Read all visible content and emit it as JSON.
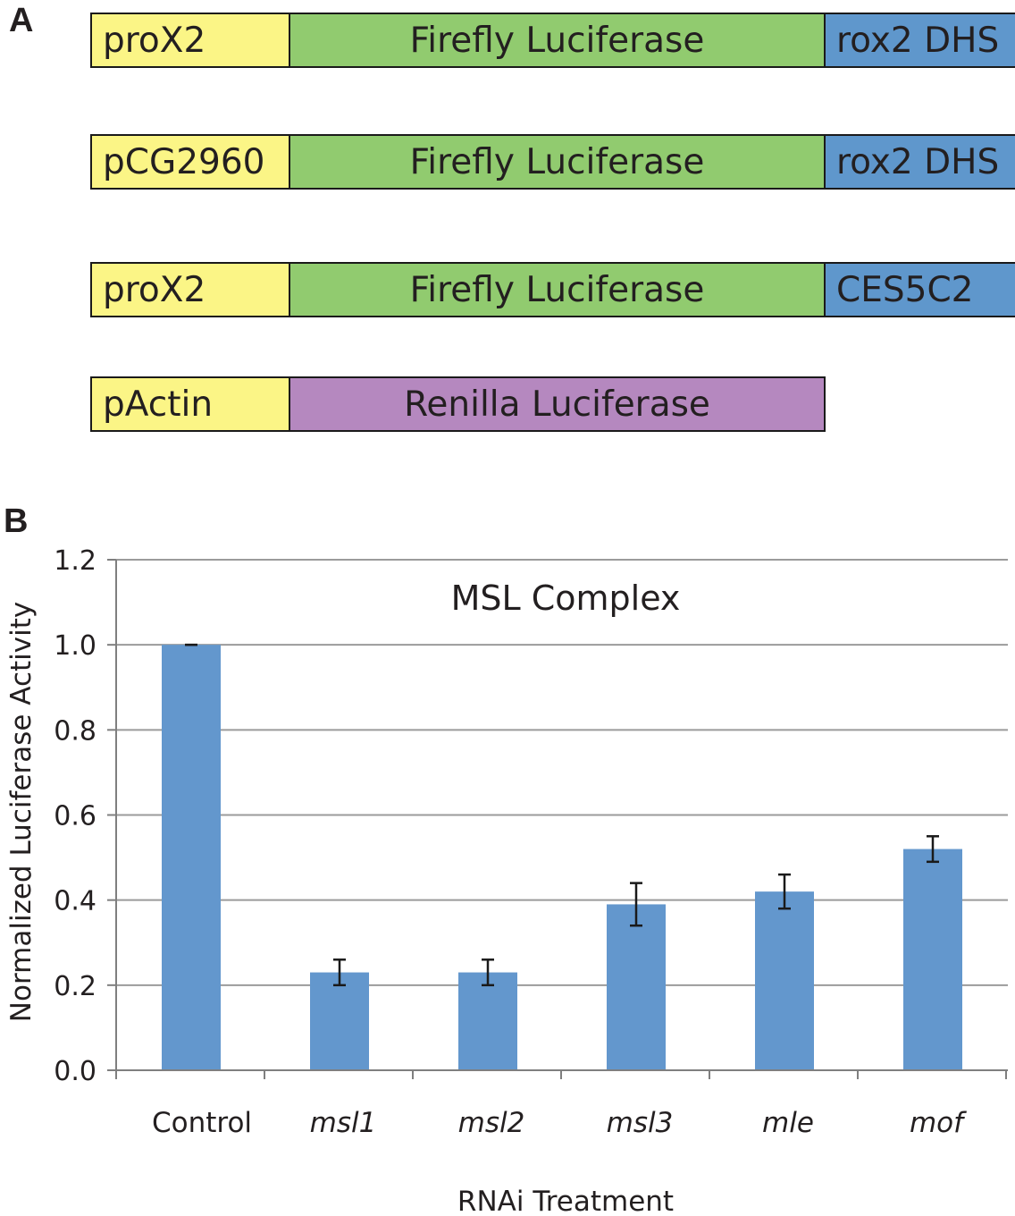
{
  "panels": {
    "a_label": "A",
    "b_label": "B"
  },
  "constructs": [
    {
      "promoter": "proX2",
      "gene": "Firefly Luciferase",
      "element": "rox2 DHS"
    },
    {
      "promoter": "pCG2960",
      "gene": "Firefly Luciferase",
      "element": "rox2 DHS"
    },
    {
      "promoter": "proX2",
      "gene": "Firefly Luciferase",
      "element": "CES5C2"
    },
    {
      "promoter": "pActin",
      "gene": "Renilla Luciferase"
    }
  ],
  "colors": {
    "promoter": "#fbf586",
    "firefly": "#91cb6f",
    "element": "#5f97cc",
    "renilla": "#b588bf",
    "bar": "#6397cd",
    "grid": "#9b9b9b"
  },
  "chart_data": {
    "type": "bar",
    "title": "MSL Complex",
    "xlabel": "RNAi Treatment",
    "ylabel": "Normalized Luciferase Activity",
    "categories": [
      "Control",
      "msl1",
      "msl2",
      "msl3",
      "mle",
      "mof"
    ],
    "italic_categories": [
      false,
      true,
      true,
      true,
      true,
      true
    ],
    "values": [
      1.0,
      0.23,
      0.23,
      0.39,
      0.42,
      0.52
    ],
    "errors": [
      0.0,
      0.03,
      0.03,
      0.05,
      0.04,
      0.03
    ],
    "ylim": [
      0,
      1.2
    ],
    "yticks": [
      "0.0",
      "0.2",
      "0.4",
      "0.6",
      "0.8",
      "1.0",
      "1.2"
    ],
    "grid": true
  }
}
